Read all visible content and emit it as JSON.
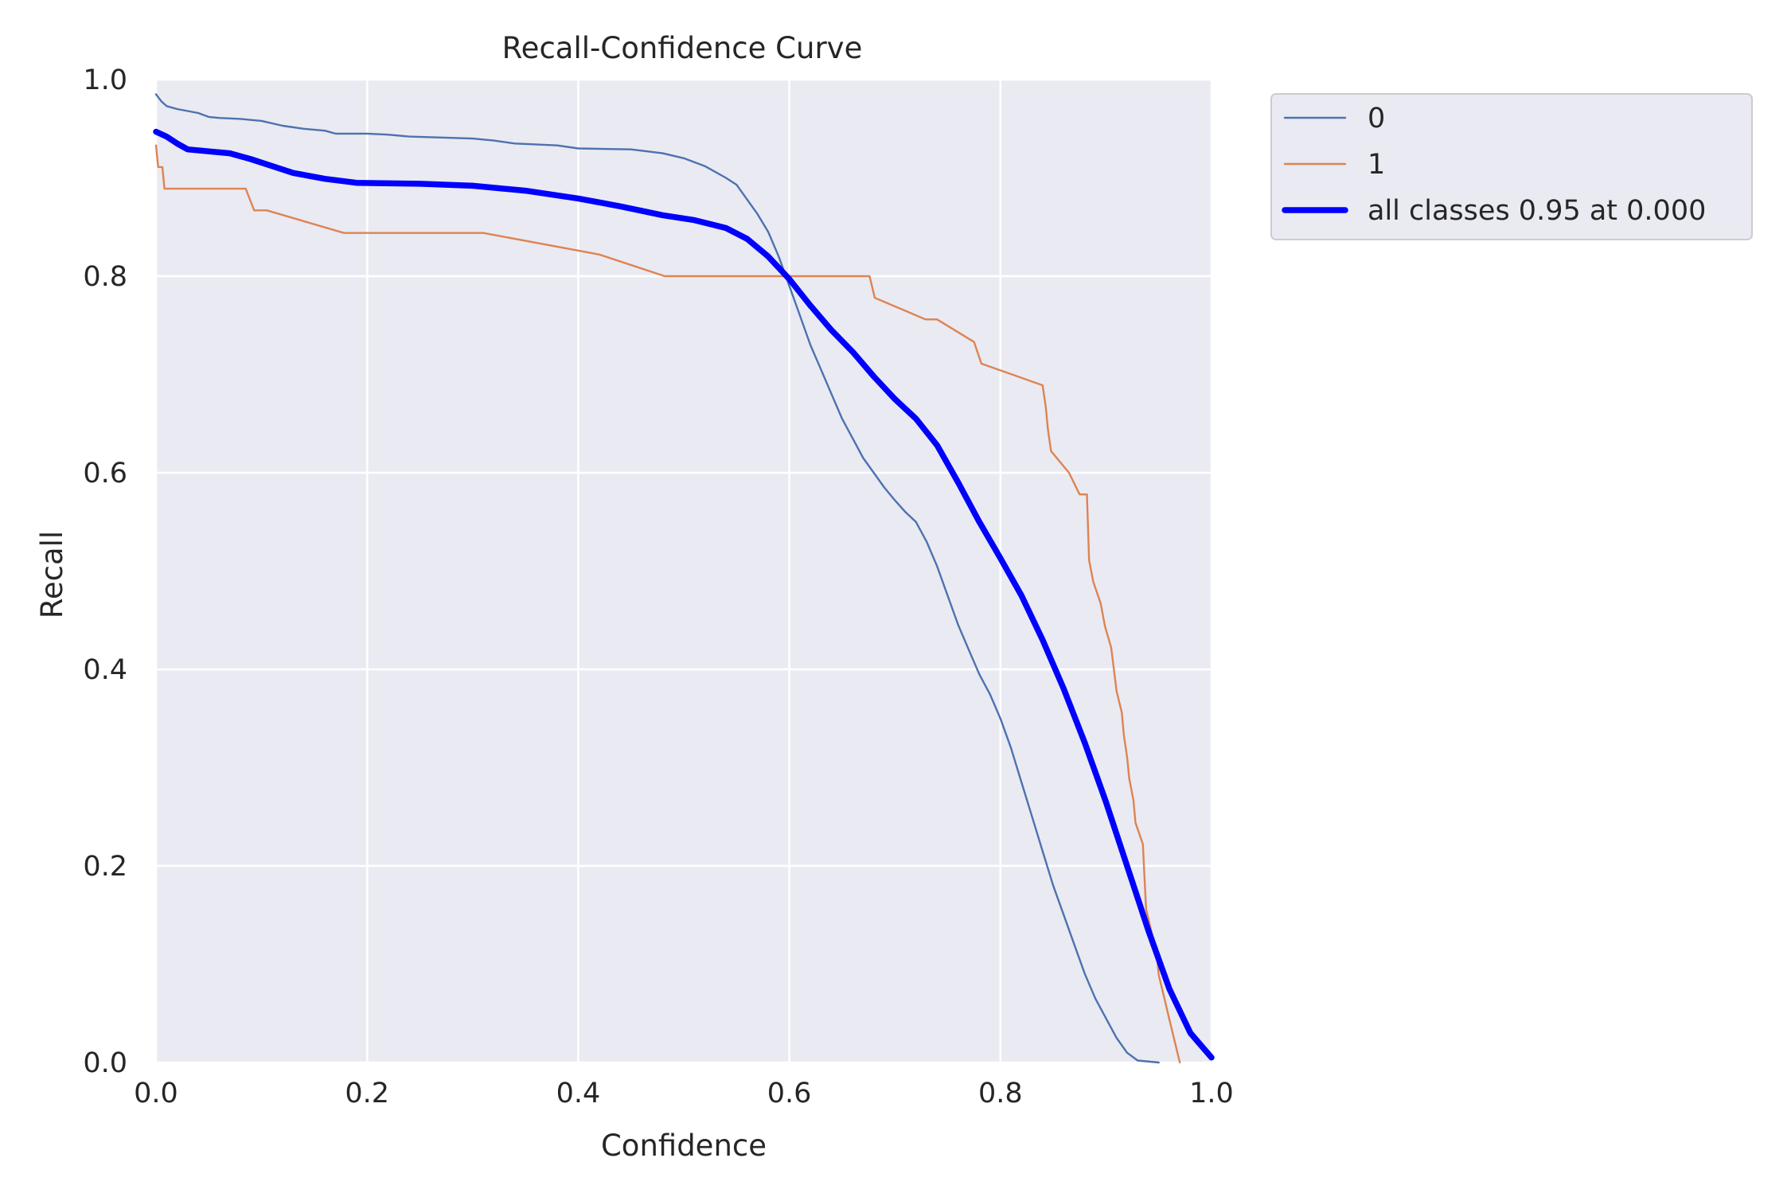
{
  "chart_data": {
    "type": "line",
    "title": "Recall-Confidence Curve",
    "xlabel": "Confidence",
    "ylabel": "Recall",
    "xlim": [
      0.0,
      1.0
    ],
    "ylim": [
      0.0,
      1.0
    ],
    "xticks": [
      "0.0",
      "0.2",
      "0.4",
      "0.6",
      "0.8",
      "1.0"
    ],
    "yticks": [
      "0.0",
      "0.2",
      "0.4",
      "0.6",
      "0.8",
      "1.0"
    ],
    "grid": true,
    "legend_position": "outside-top-right",
    "background_color": "#EAEAF2",
    "series": [
      {
        "name": "0",
        "color": "#4C72B0",
        "points": [
          [
            0.0,
            0.985
          ],
          [
            0.005,
            0.978
          ],
          [
            0.01,
            0.973
          ],
          [
            0.02,
            0.97
          ],
          [
            0.03,
            0.968
          ],
          [
            0.04,
            0.966
          ],
          [
            0.05,
            0.962
          ],
          [
            0.06,
            0.961
          ],
          [
            0.08,
            0.96
          ],
          [
            0.1,
            0.958
          ],
          [
            0.12,
            0.953
          ],
          [
            0.14,
            0.95
          ],
          [
            0.16,
            0.948
          ],
          [
            0.17,
            0.945
          ],
          [
            0.2,
            0.945
          ],
          [
            0.22,
            0.944
          ],
          [
            0.24,
            0.942
          ],
          [
            0.3,
            0.94
          ],
          [
            0.32,
            0.938
          ],
          [
            0.34,
            0.935
          ],
          [
            0.38,
            0.933
          ],
          [
            0.4,
            0.93
          ],
          [
            0.45,
            0.929
          ],
          [
            0.48,
            0.925
          ],
          [
            0.5,
            0.92
          ],
          [
            0.52,
            0.912
          ],
          [
            0.54,
            0.9
          ],
          [
            0.55,
            0.893
          ],
          [
            0.56,
            0.878
          ],
          [
            0.57,
            0.863
          ],
          [
            0.58,
            0.845
          ],
          [
            0.59,
            0.82
          ],
          [
            0.6,
            0.79
          ],
          [
            0.61,
            0.76
          ],
          [
            0.62,
            0.73
          ],
          [
            0.63,
            0.705
          ],
          [
            0.64,
            0.68
          ],
          [
            0.65,
            0.655
          ],
          [
            0.66,
            0.635
          ],
          [
            0.67,
            0.615
          ],
          [
            0.68,
            0.6
          ],
          [
            0.69,
            0.585
          ],
          [
            0.7,
            0.572
          ],
          [
            0.71,
            0.56
          ],
          [
            0.72,
            0.55
          ],
          [
            0.73,
            0.53
          ],
          [
            0.74,
            0.505
          ],
          [
            0.75,
            0.475
          ],
          [
            0.76,
            0.445
          ],
          [
            0.77,
            0.42
          ],
          [
            0.78,
            0.395
          ],
          [
            0.79,
            0.375
          ],
          [
            0.8,
            0.35
          ],
          [
            0.81,
            0.32
          ],
          [
            0.82,
            0.285
          ],
          [
            0.83,
            0.25
          ],
          [
            0.84,
            0.215
          ],
          [
            0.85,
            0.18
          ],
          [
            0.86,
            0.15
          ],
          [
            0.87,
            0.12
          ],
          [
            0.88,
            0.09
          ],
          [
            0.89,
            0.065
          ],
          [
            0.9,
            0.045
          ],
          [
            0.91,
            0.025
          ],
          [
            0.92,
            0.01
          ],
          [
            0.93,
            0.002
          ],
          [
            0.95,
            0.0
          ]
        ]
      },
      {
        "name": "1",
        "color": "#DD8452",
        "points": [
          [
            0.0,
            0.933
          ],
          [
            0.002,
            0.911
          ],
          [
            0.006,
            0.911
          ],
          [
            0.008,
            0.889
          ],
          [
            0.085,
            0.889
          ],
          [
            0.093,
            0.867
          ],
          [
            0.105,
            0.867
          ],
          [
            0.178,
            0.844
          ],
          [
            0.31,
            0.844
          ],
          [
            0.42,
            0.822
          ],
          [
            0.482,
            0.8
          ],
          [
            0.676,
            0.8
          ],
          [
            0.681,
            0.778
          ],
          [
            0.729,
            0.756
          ],
          [
            0.74,
            0.756
          ],
          [
            0.775,
            0.733
          ],
          [
            0.782,
            0.711
          ],
          [
            0.84,
            0.689
          ],
          [
            0.843,
            0.667
          ],
          [
            0.845,
            0.644
          ],
          [
            0.848,
            0.622
          ],
          [
            0.865,
            0.6
          ],
          [
            0.875,
            0.578
          ],
          [
            0.882,
            0.578
          ],
          [
            0.884,
            0.511
          ],
          [
            0.888,
            0.489
          ],
          [
            0.895,
            0.467
          ],
          [
            0.899,
            0.444
          ],
          [
            0.905,
            0.422
          ],
          [
            0.91,
            0.378
          ],
          [
            0.915,
            0.356
          ],
          [
            0.917,
            0.333
          ],
          [
            0.92,
            0.311
          ],
          [
            0.922,
            0.289
          ],
          [
            0.926,
            0.267
          ],
          [
            0.928,
            0.244
          ],
          [
            0.935,
            0.222
          ],
          [
            0.936,
            0.2
          ],
          [
            0.938,
            0.156
          ],
          [
            0.948,
            0.111
          ],
          [
            0.95,
            0.089
          ],
          [
            0.955,
            0.067
          ],
          [
            0.96,
            0.044
          ],
          [
            0.965,
            0.022
          ],
          [
            0.97,
            0.0
          ]
        ]
      },
      {
        "name": "all classes 0.95 at 0.000",
        "color": "#0000FF",
        "points": [
          [
            0.0,
            0.947
          ],
          [
            0.01,
            0.942
          ],
          [
            0.02,
            0.935
          ],
          [
            0.03,
            0.929
          ],
          [
            0.05,
            0.927
          ],
          [
            0.07,
            0.925
          ],
          [
            0.09,
            0.919
          ],
          [
            0.11,
            0.912
          ],
          [
            0.13,
            0.905
          ],
          [
            0.16,
            0.899
          ],
          [
            0.19,
            0.895
          ],
          [
            0.25,
            0.894
          ],
          [
            0.3,
            0.892
          ],
          [
            0.35,
            0.887
          ],
          [
            0.4,
            0.879
          ],
          [
            0.44,
            0.871
          ],
          [
            0.48,
            0.862
          ],
          [
            0.51,
            0.857
          ],
          [
            0.54,
            0.849
          ],
          [
            0.56,
            0.838
          ],
          [
            0.58,
            0.82
          ],
          [
            0.6,
            0.797
          ],
          [
            0.62,
            0.77
          ],
          [
            0.64,
            0.745
          ],
          [
            0.66,
            0.723
          ],
          [
            0.68,
            0.698
          ],
          [
            0.7,
            0.675
          ],
          [
            0.72,
            0.655
          ],
          [
            0.74,
            0.628
          ],
          [
            0.76,
            0.59
          ],
          [
            0.78,
            0.55
          ],
          [
            0.8,
            0.513
          ],
          [
            0.82,
            0.475
          ],
          [
            0.84,
            0.43
          ],
          [
            0.86,
            0.38
          ],
          [
            0.88,
            0.325
          ],
          [
            0.9,
            0.265
          ],
          [
            0.92,
            0.2
          ],
          [
            0.94,
            0.135
          ],
          [
            0.96,
            0.075
          ],
          [
            0.98,
            0.03
          ],
          [
            1.0,
            0.005
          ]
        ]
      }
    ]
  }
}
